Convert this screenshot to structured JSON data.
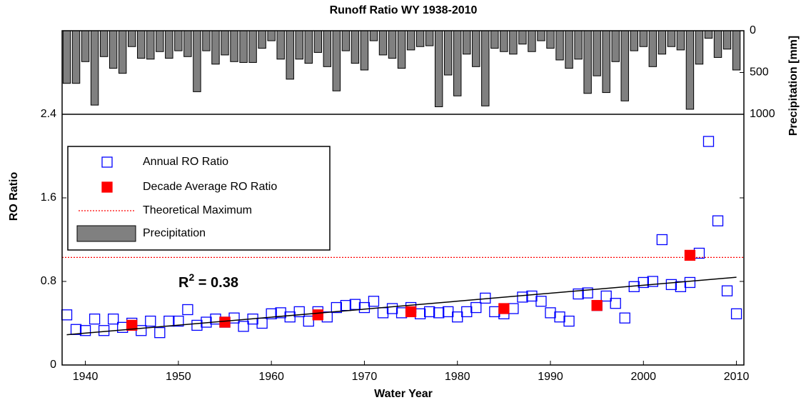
{
  "chart_data": {
    "type": "scatter",
    "title": "Runoff Ratio WY 1938-2010",
    "x_label": "Water Year",
    "y_label": "RO Ratio",
    "y2_label": "Precipitation [mm]",
    "x": [
      1938,
      1939,
      1940,
      1941,
      1942,
      1943,
      1944,
      1945,
      1946,
      1947,
      1948,
      1949,
      1950,
      1951,
      1952,
      1953,
      1954,
      1955,
      1956,
      1957,
      1958,
      1959,
      1960,
      1961,
      1962,
      1963,
      1964,
      1965,
      1966,
      1967,
      1968,
      1969,
      1970,
      1971,
      1972,
      1973,
      1974,
      1975,
      1976,
      1977,
      1978,
      1979,
      1980,
      1981,
      1982,
      1983,
      1984,
      1985,
      1986,
      1987,
      1988,
      1989,
      1990,
      1991,
      1992,
      1993,
      1994,
      1995,
      1996,
      1997,
      1998,
      1999,
      2000,
      2001,
      2002,
      2003,
      2004,
      2005,
      2006,
      2007,
      2008,
      2009,
      2010
    ],
    "xlim": [
      1937.5,
      2010.8
    ],
    "xticks": [
      1940,
      1950,
      1960,
      1970,
      1980,
      1990,
      2000,
      2010
    ],
    "ylim": [
      0,
      3.2
    ],
    "yticks": [
      0,
      0.8,
      1.6,
      2.4
    ],
    "y2lim": [
      0,
      4000
    ],
    "y2ticks": [
      0,
      500,
      1000
    ],
    "y2_inverted": true,
    "series": [
      {
        "name": "Annual RO Ratio",
        "color": "#0000ff",
        "marker": "open-square",
        "values": [
          0.48,
          0.34,
          0.33,
          0.44,
          0.33,
          0.44,
          0.36,
          0.4,
          0.33,
          0.42,
          0.31,
          0.42,
          0.42,
          0.53,
          0.38,
          0.41,
          0.44,
          0.41,
          0.45,
          0.37,
          0.44,
          0.4,
          0.49,
          0.5,
          0.46,
          0.51,
          0.42,
          0.51,
          0.46,
          0.55,
          0.57,
          0.58,
          0.55,
          0.61,
          0.5,
          0.54,
          0.5,
          0.55,
          0.49,
          0.51,
          0.5,
          0.51,
          0.46,
          0.51,
          0.55,
          0.64,
          0.51,
          0.49,
          0.54,
          0.65,
          0.66,
          0.61,
          0.5,
          0.46,
          0.42,
          0.68,
          0.69,
          0.57,
          0.66,
          0.59,
          0.45,
          0.75,
          0.79,
          0.8,
          1.2,
          0.77,
          0.75,
          0.79,
          1.07,
          2.14,
          1.38,
          0.71,
          0.49
        ]
      },
      {
        "name": "Decade Average RO Ratio",
        "color": "#ff0000",
        "marker": "filled-square",
        "x": [
          1945,
          1955,
          1965,
          1975,
          1985,
          1995,
          2005
        ],
        "values": [
          0.38,
          0.41,
          0.48,
          0.51,
          0.54,
          0.57,
          1.05
        ]
      },
      {
        "name": "Theoretical Maximum",
        "color": "#ff0000",
        "style": "dotted",
        "value": 1.03
      },
      {
        "name": "Precipitation",
        "color": "#808080",
        "type": "bar",
        "axis": "y2",
        "values": [
          630,
          630,
          370,
          890,
          310,
          450,
          510,
          190,
          330,
          340,
          250,
          330,
          240,
          310,
          730,
          240,
          400,
          290,
          370,
          380,
          380,
          210,
          120,
          340,
          580,
          340,
          390,
          260,
          430,
          720,
          240,
          390,
          470,
          120,
          290,
          330,
          450,
          230,
          190,
          180,
          910,
          530,
          780,
          280,
          430,
          900,
          210,
          250,
          280,
          160,
          250,
          120,
          210,
          350,
          450,
          340,
          750,
          540,
          740,
          370,
          840,
          240,
          190,
          430,
          280,
          190,
          230,
          940,
          400,
          90,
          320,
          220,
          470
        ]
      }
    ],
    "trend": {
      "x": [
        1938,
        2010
      ],
      "values": [
        0.29,
        0.84
      ],
      "color": "#000000"
    },
    "annotation": {
      "base": "R",
      "sup": "2",
      "rest": " = 0.38"
    }
  }
}
